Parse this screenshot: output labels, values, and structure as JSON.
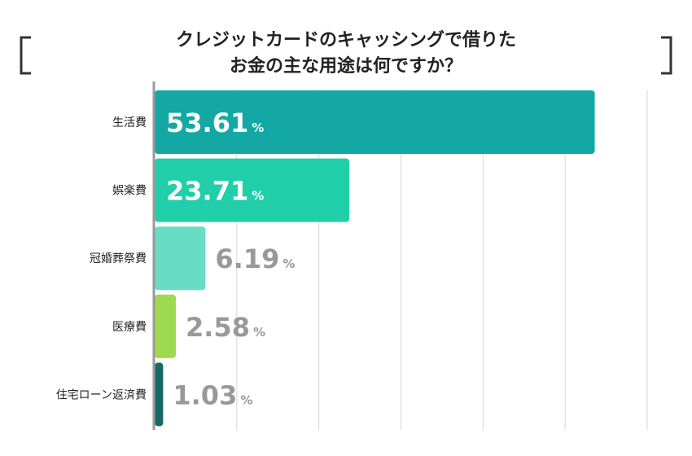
{
  "chart_data": {
    "type": "bar",
    "orientation": "horizontal",
    "title": [
      "クレジットカードのキャッシングで借りた",
      "お金の主な用途は何ですか？"
    ],
    "categories": [
      "生活費",
      "娯楽費",
      "冠婚葬祭費",
      "医療費",
      "住宅ローン返済費"
    ],
    "values": [
      53.61,
      23.71,
      6.19,
      2.58,
      1.03
    ],
    "value_labels": [
      "53.61",
      "23.71",
      "6.19",
      "2.58",
      "1.03"
    ],
    "unit": "%",
    "colors": [
      "#14a8a4",
      "#20cfaa",
      "#68ddc6",
      "#9ed94f",
      "#176b66"
    ],
    "label_colors": [
      "#ffffff",
      "#ffffff",
      "#999999",
      "#999999",
      "#999999"
    ],
    "xlim": [
      0,
      60
    ],
    "grid": true,
    "grid_color": "#d6d6d6"
  }
}
